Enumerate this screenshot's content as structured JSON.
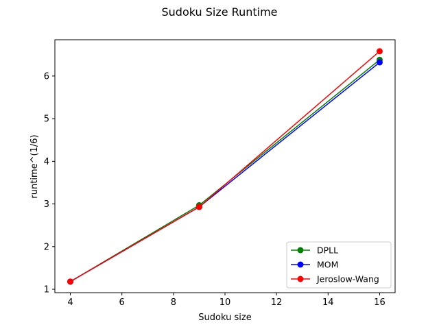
{
  "chart_data": {
    "type": "line",
    "title": "Sudoku Size Runtime",
    "xlabel": "Sudoku size",
    "ylabel": "runtime^(1/6)",
    "xlim": [
      3.4,
      16.6
    ],
    "ylim": [
      0.92,
      6.85
    ],
    "xticks": [
      4,
      6,
      8,
      10,
      12,
      14,
      16
    ],
    "yticks": [
      1,
      2,
      3,
      4,
      5,
      6
    ],
    "grid": false,
    "legend_position": "lower-right",
    "series": [
      {
        "name": "DPLL",
        "color": "#008000",
        "x": [
          4,
          9,
          16
        ],
        "y": [
          1.18,
          2.97,
          6.38
        ]
      },
      {
        "name": "MOM",
        "color": "#0000ff",
        "x": [
          4,
          9,
          16
        ],
        "y": [
          1.18,
          2.93,
          6.32
        ]
      },
      {
        "name": "Jeroslow-Wang",
        "color": "#ff0000",
        "x": [
          4,
          9,
          16
        ],
        "y": [
          1.18,
          2.93,
          6.58
        ]
      }
    ]
  }
}
